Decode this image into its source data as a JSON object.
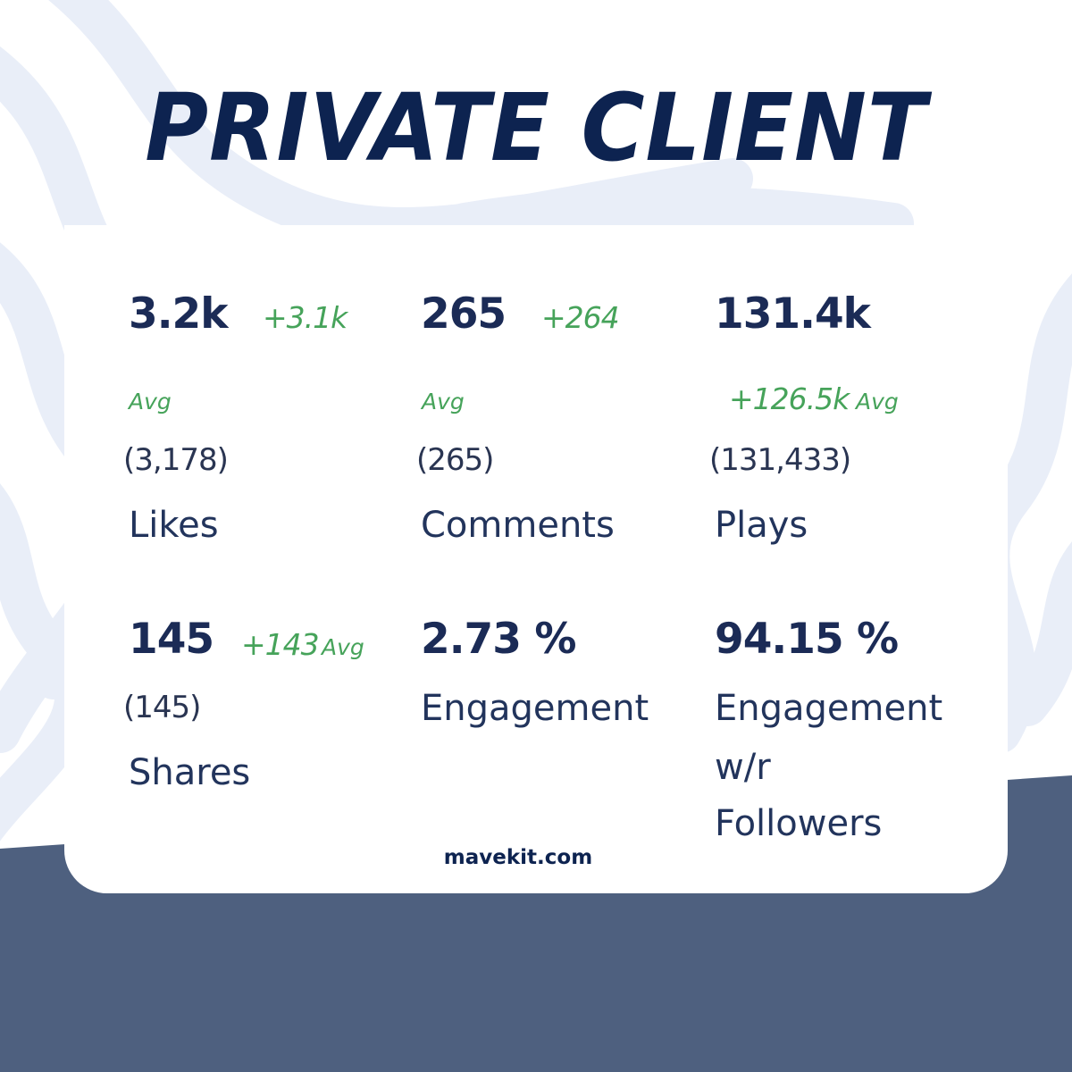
{
  "title": "PRIVATE CLIENT",
  "colors": {
    "title": "#0d2350",
    "value": "#1b2b56",
    "delta": "#46a35a",
    "band": "#4e607f",
    "wave": "#e9eef8",
    "card": "#ffffff"
  },
  "metrics": [
    {
      "value": "3.2k",
      "delta": "+3.1k",
      "avg": "Avg",
      "raw": "(3,178)",
      "label": "Likes"
    },
    {
      "value": "265",
      "delta": "+264",
      "avg": "Avg",
      "raw": "(265)",
      "label": "Comments"
    },
    {
      "value": "131.4k",
      "delta": "+126.5k",
      "avg": "Avg",
      "raw": "(131,433)",
      "label": "Plays"
    },
    {
      "value": "145",
      "delta": "+143",
      "avg": "Avg",
      "raw": "(145)",
      "label": "Shares"
    },
    {
      "value": "2.73 %",
      "label": "Engagement"
    },
    {
      "value": "94.15 %",
      "label_lines": [
        "Engagement",
        "w/r",
        "Followers"
      ]
    }
  ],
  "footer": {
    "link": "mavekit.com"
  }
}
